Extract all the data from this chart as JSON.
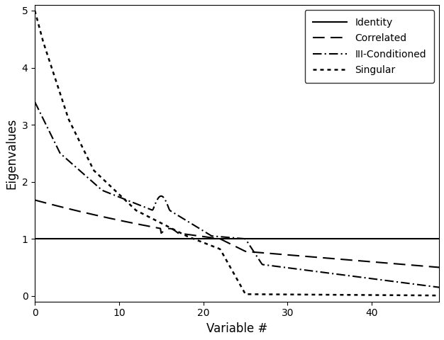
{
  "title": "",
  "xlabel": "Variable #",
  "ylabel": "Eigenvalues",
  "xlim": [
    0,
    48
  ],
  "ylim": [
    -0.1,
    5.1
  ],
  "xticks": [
    0,
    10,
    20,
    30,
    40
  ],
  "yticks": [
    0,
    1,
    2,
    3,
    4,
    5
  ],
  "background_color": "#ffffff",
  "line_color": "#000000",
  "legend_labels": [
    "Identity",
    "Correlated",
    "III-Conditioned",
    "Singular"
  ]
}
